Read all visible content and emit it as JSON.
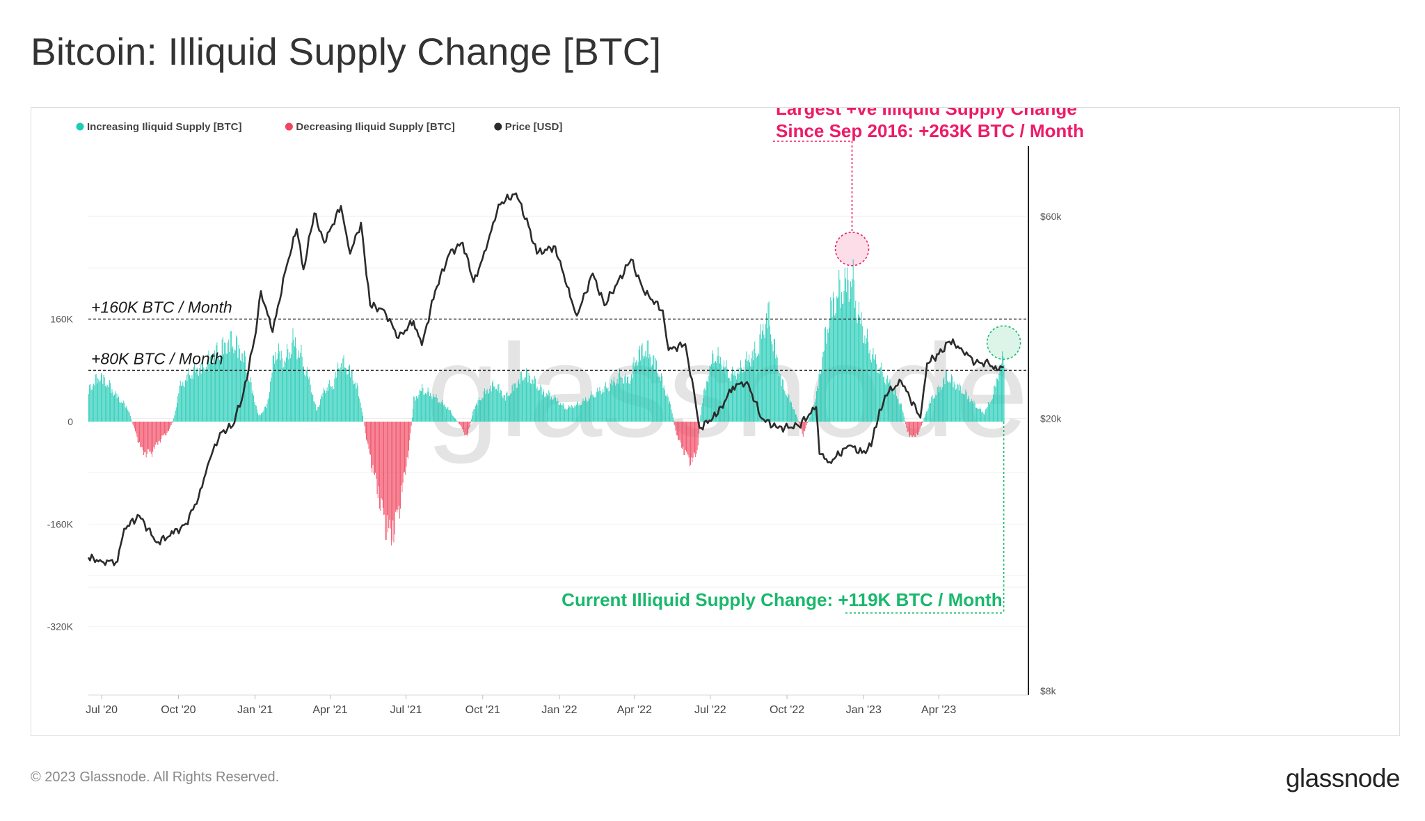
{
  "title": "Bitcoin: Illiquid Supply Change [BTC]",
  "footer": {
    "copyright": "© 2023 Glassnode. All Rights Reserved.",
    "logo": "glassnode"
  },
  "watermark": "glassnode",
  "colors": {
    "increasing": "#1fcbb5",
    "decreasing": "#f0455f",
    "price": "#2b2b2b",
    "annotation_pink": "#ee1b67",
    "annotation_green": "#19b86c"
  },
  "chart_data": {
    "type": "bar",
    "legend": [
      {
        "label": "Increasing Iliquid Supply [BTC]",
        "color": "#1fcbb5"
      },
      {
        "label": "Decreasing Iliquid Supply [BTC]",
        "color": "#f0455f"
      },
      {
        "label": "Price [USD]",
        "color": "#2b2b2b"
      }
    ],
    "legend_position": "top-left",
    "x_range": [
      "2020-06-15",
      "2023-06-20"
    ],
    "x_ticks": [
      {
        "date": "2020-07-01",
        "label": "Jul '20"
      },
      {
        "date": "2020-10-01",
        "label": "Oct '20"
      },
      {
        "date": "2021-01-01",
        "label": "Jan '21"
      },
      {
        "date": "2021-04-01",
        "label": "Apr '21"
      },
      {
        "date": "2021-07-01",
        "label": "Jul '21"
      },
      {
        "date": "2021-10-01",
        "label": "Oct '21"
      },
      {
        "date": "2022-01-01",
        "label": "Jan '22"
      },
      {
        "date": "2022-04-01",
        "label": "Apr '22"
      },
      {
        "date": "2022-07-01",
        "label": "Jul '22"
      },
      {
        "date": "2022-10-01",
        "label": "Oct '22"
      },
      {
        "date": "2023-01-01",
        "label": "Jan '23"
      },
      {
        "date": "2023-04-01",
        "label": "Apr '23"
      }
    ],
    "y_left": {
      "range": [
        -320000,
        320000
      ],
      "ticks": [
        {
          "value": 160000,
          "label": "160K"
        },
        {
          "value": 0,
          "label": "0"
        },
        {
          "value": -160000,
          "label": "-160K"
        },
        {
          "value": -320000,
          "label": "-320K"
        }
      ]
    },
    "y_right": {
      "scale": "log",
      "range": [
        8000,
        100000
      ],
      "ticks": [
        {
          "value": 60000,
          "label": "$60k"
        },
        {
          "value": 20000,
          "label": "$20k"
        },
        {
          "value": 8000,
          "label": "$8k"
        }
      ]
    },
    "illiquid_supply_change": {
      "name": "Illiquid Supply Change [BTC]",
      "points": [
        [
          "2020-06-15",
          60000
        ],
        [
          "2020-06-28",
          85000
        ],
        [
          "2020-07-08",
          70000
        ],
        [
          "2020-07-20",
          45000
        ],
        [
          "2020-08-01",
          25000
        ],
        [
          "2020-08-08",
          -10000
        ],
        [
          "2020-08-18",
          -55000
        ],
        [
          "2020-08-28",
          -60000
        ],
        [
          "2020-09-08",
          -35000
        ],
        [
          "2020-09-20",
          -15000
        ],
        [
          "2020-09-26",
          10000
        ],
        [
          "2020-10-01",
          60000
        ],
        [
          "2020-10-15",
          90000
        ],
        [
          "2020-10-28",
          100000
        ],
        [
          "2020-11-10",
          120000
        ],
        [
          "2020-11-25",
          140000
        ],
        [
          "2020-12-05",
          150000
        ],
        [
          "2020-12-18",
          120000
        ],
        [
          "2020-12-28",
          60000
        ],
        [
          "2021-01-05",
          10000
        ],
        [
          "2021-01-15",
          30000
        ],
        [
          "2021-01-25",
          135000
        ],
        [
          "2021-02-05",
          110000
        ],
        [
          "2021-02-15",
          150000
        ],
        [
          "2021-02-25",
          120000
        ],
        [
          "2021-03-08",
          70000
        ],
        [
          "2021-03-15",
          20000
        ],
        [
          "2021-03-25",
          60000
        ],
        [
          "2021-04-05",
          70000
        ],
        [
          "2021-04-12",
          110000
        ],
        [
          "2021-04-22",
          100000
        ],
        [
          "2021-05-02",
          70000
        ],
        [
          "2021-05-08",
          30000
        ],
        [
          "2021-05-15",
          -40000
        ],
        [
          "2021-05-25",
          -110000
        ],
        [
          "2021-06-05",
          -185000
        ],
        [
          "2021-06-12",
          -215000
        ],
        [
          "2021-06-20",
          -180000
        ],
        [
          "2021-06-28",
          -110000
        ],
        [
          "2021-07-05",
          -40000
        ],
        [
          "2021-07-10",
          40000
        ],
        [
          "2021-07-20",
          60000
        ],
        [
          "2021-08-05",
          45000
        ],
        [
          "2021-08-20",
          25000
        ],
        [
          "2021-09-05",
          -10000
        ],
        [
          "2021-09-12",
          -30000
        ],
        [
          "2021-09-20",
          25000
        ],
        [
          "2021-10-01",
          50000
        ],
        [
          "2021-10-15",
          70000
        ],
        [
          "2021-10-28",
          45000
        ],
        [
          "2021-11-10",
          70000
        ],
        [
          "2021-11-20",
          90000
        ],
        [
          "2021-12-01",
          75000
        ],
        [
          "2021-12-12",
          55000
        ],
        [
          "2021-12-25",
          45000
        ],
        [
          "2022-01-08",
          25000
        ],
        [
          "2022-01-20",
          30000
        ],
        [
          "2022-02-01",
          40000
        ],
        [
          "2022-02-15",
          55000
        ],
        [
          "2022-03-01",
          65000
        ],
        [
          "2022-03-15",
          85000
        ],
        [
          "2022-03-25",
          75000
        ],
        [
          "2022-04-05",
          125000
        ],
        [
          "2022-04-15",
          135000
        ],
        [
          "2022-04-25",
          110000
        ],
        [
          "2022-05-05",
          70000
        ],
        [
          "2022-05-15",
          25000
        ],
        [
          "2022-05-22",
          -30000
        ],
        [
          "2022-06-01",
          -60000
        ],
        [
          "2022-06-08",
          -75000
        ],
        [
          "2022-06-15",
          -55000
        ],
        [
          "2022-06-20",
          30000
        ],
        [
          "2022-06-28",
          85000
        ],
        [
          "2022-07-05",
          125000
        ],
        [
          "2022-07-15",
          110000
        ],
        [
          "2022-07-25",
          85000
        ],
        [
          "2022-08-05",
          95000
        ],
        [
          "2022-08-15",
          115000
        ],
        [
          "2022-08-25",
          130000
        ],
        [
          "2022-09-01",
          165000
        ],
        [
          "2022-09-08",
          200000
        ],
        [
          "2022-09-15",
          140000
        ],
        [
          "2022-09-25",
          70000
        ],
        [
          "2022-10-10",
          20000
        ],
        [
          "2022-10-20",
          -25000
        ],
        [
          "2022-10-28",
          10000
        ],
        [
          "2022-11-05",
          50000
        ],
        [
          "2022-11-12",
          120000
        ],
        [
          "2022-11-20",
          195000
        ],
        [
          "2022-11-28",
          230000
        ],
        [
          "2022-12-05",
          245000
        ],
        [
          "2022-12-12",
          255000
        ],
        [
          "2022-12-18",
          263000
        ],
        [
          "2022-12-25",
          200000
        ],
        [
          "2023-01-05",
          145000
        ],
        [
          "2023-01-15",
          110000
        ],
        [
          "2023-01-25",
          85000
        ],
        [
          "2023-02-05",
          60000
        ],
        [
          "2023-02-15",
          30000
        ],
        [
          "2023-02-22",
          -20000
        ],
        [
          "2023-03-01",
          -30000
        ],
        [
          "2023-03-08",
          -20000
        ],
        [
          "2023-03-15",
          10000
        ],
        [
          "2023-03-22",
          40000
        ],
        [
          "2023-04-01",
          60000
        ],
        [
          "2023-04-10",
          85000
        ],
        [
          "2023-04-20",
          70000
        ],
        [
          "2023-05-01",
          55000
        ],
        [
          "2023-05-15",
          30000
        ],
        [
          "2023-05-25",
          15000
        ],
        [
          "2023-06-05",
          50000
        ],
        [
          "2023-06-12",
          95000
        ],
        [
          "2023-06-18",
          119000
        ]
      ]
    },
    "price": {
      "name": "Price [USD]",
      "points": [
        [
          "2020-06-15",
          9400
        ],
        [
          "2020-07-01",
          9200
        ],
        [
          "2020-07-20",
          9200
        ],
        [
          "2020-07-28",
          11000
        ],
        [
          "2020-08-15",
          11800
        ],
        [
          "2020-09-05",
          10200
        ],
        [
          "2020-09-25",
          10700
        ],
        [
          "2020-10-10",
          11300
        ],
        [
          "2020-10-25",
          13000
        ],
        [
          "2020-11-05",
          15500
        ],
        [
          "2020-11-20",
          18500
        ],
        [
          "2020-12-05",
          19200
        ],
        [
          "2020-12-18",
          23000
        ],
        [
          "2021-01-02",
          32000
        ],
        [
          "2021-01-08",
          40000
        ],
        [
          "2021-01-22",
          32000
        ],
        [
          "2021-02-08",
          46000
        ],
        [
          "2021-02-20",
          56000
        ],
        [
          "2021-02-28",
          45000
        ],
        [
          "2021-03-13",
          61000
        ],
        [
          "2021-03-25",
          52000
        ],
        [
          "2021-04-14",
          63500
        ],
        [
          "2021-04-25",
          49000
        ],
        [
          "2021-05-08",
          58000
        ],
        [
          "2021-05-19",
          37000
        ],
        [
          "2021-06-05",
          36000
        ],
        [
          "2021-06-22",
          31000
        ],
        [
          "2021-07-10",
          34000
        ],
        [
          "2021-07-20",
          29800
        ],
        [
          "2021-08-05",
          40000
        ],
        [
          "2021-08-22",
          49000
        ],
        [
          "2021-09-07",
          52000
        ],
        [
          "2021-09-20",
          42000
        ],
        [
          "2021-10-05",
          50000
        ],
        [
          "2021-10-20",
          64000
        ],
        [
          "2021-11-10",
          68000
        ],
        [
          "2021-11-25",
          57000
        ],
        [
          "2021-12-05",
          49000
        ],
        [
          "2021-12-27",
          51000
        ],
        [
          "2022-01-10",
          41000
        ],
        [
          "2022-01-22",
          35000
        ],
        [
          "2022-02-10",
          44000
        ],
        [
          "2022-02-24",
          37000
        ],
        [
          "2022-03-28",
          47500
        ],
        [
          "2022-04-12",
          40000
        ],
        [
          "2022-05-05",
          36000
        ],
        [
          "2022-05-12",
          29000
        ],
        [
          "2022-06-01",
          30000
        ],
        [
          "2022-06-13",
          22000
        ],
        [
          "2022-06-18",
          19000
        ],
        [
          "2022-07-10",
          20500
        ],
        [
          "2022-07-28",
          23800
        ],
        [
          "2022-08-14",
          24400
        ],
        [
          "2022-09-01",
          20000
        ],
        [
          "2022-09-20",
          19000
        ],
        [
          "2022-10-15",
          19200
        ],
        [
          "2022-11-05",
          21300
        ],
        [
          "2022-11-09",
          16500
        ],
        [
          "2022-11-21",
          15800
        ],
        [
          "2022-12-15",
          17300
        ],
        [
          "2022-12-30",
          16600
        ],
        [
          "2023-01-10",
          17200
        ],
        [
          "2023-01-20",
          21000
        ],
        [
          "2023-01-31",
          23100
        ],
        [
          "2023-02-15",
          24500
        ],
        [
          "2023-03-10",
          20100
        ],
        [
          "2023-03-18",
          27000
        ],
        [
          "2023-04-01",
          28400
        ],
        [
          "2023-04-14",
          30400
        ],
        [
          "2023-04-28",
          29300
        ],
        [
          "2023-05-15",
          27100
        ],
        [
          "2023-05-31",
          27000
        ],
        [
          "2023-06-10",
          26000
        ],
        [
          "2023-06-18",
          26500
        ]
      ]
    },
    "reference_lines": [
      {
        "value": 160000,
        "label": "+160K BTC / Month"
      },
      {
        "value": 80000,
        "label": "+80K BTC / Month"
      }
    ],
    "annotations": [
      {
        "line1": "Largest +ve Illiquid Supply Change",
        "line2": "Since Sep 2016: +263K BTC / Month",
        "date": "2022-12-18",
        "value": 263000,
        "color": "#ee1b67"
      },
      {
        "line1": "Current Illiquid Supply Change: +119K BTC / Month",
        "date": "2023-06-18",
        "value": 119000,
        "color": "#19b86c"
      }
    ]
  }
}
